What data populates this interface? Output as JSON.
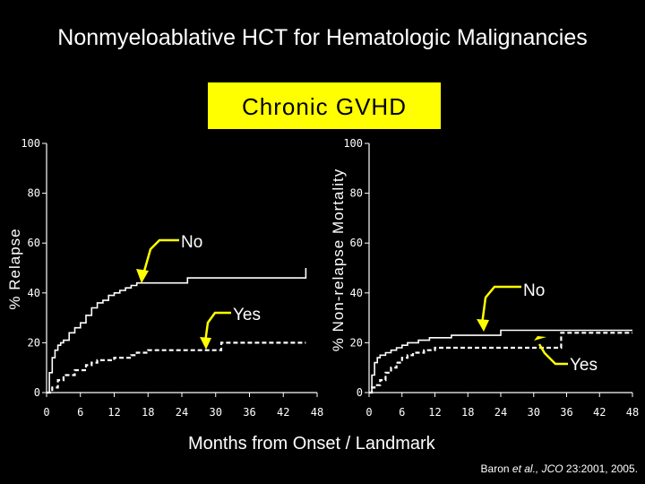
{
  "slide": {
    "title": "Nonmyeloablative HCT for Hematologic Malignancies",
    "badge": "Chronic GVHD",
    "xlabel": "Months from Onset / Landmark",
    "citation_pre": "Baron ",
    "citation_em": "et al., JCO",
    "citation_post": " 23:2001, 2005."
  },
  "colors": {
    "badge_bg": "#ffff00",
    "line": "#ffffff",
    "background": "#000000"
  },
  "chart_data": [
    {
      "type": "line",
      "name": "relapse",
      "title": "",
      "xlabel": "Months from Onset / Landmark",
      "ylabel": "% Relapse",
      "xlim": [
        0,
        48
      ],
      "ylim": [
        0,
        100
      ],
      "xticks": [
        0,
        6,
        12,
        18,
        24,
        30,
        36,
        42,
        48
      ],
      "yticks": [
        0,
        20,
        40,
        60,
        80,
        100
      ],
      "series": [
        {
          "name": "No",
          "style": "solid",
          "x": [
            0,
            0.5,
            1,
            1.5,
            2,
            2.5,
            3,
            4,
            5,
            6,
            7,
            8,
            9,
            10,
            11,
            12,
            13,
            14,
            15,
            16,
            18,
            20,
            24,
            25,
            29,
            46
          ],
          "y": [
            0,
            8,
            14,
            17,
            19,
            20,
            21,
            24,
            26,
            28,
            31,
            34,
            36,
            37,
            39,
            40,
            41,
            42,
            43,
            44,
            44,
            44,
            44,
            46,
            46,
            50
          ]
        },
        {
          "name": "Yes",
          "style": "dashed",
          "x": [
            0,
            1,
            2,
            3,
            5,
            7,
            8,
            9,
            12,
            15,
            16,
            18,
            30,
            31,
            46
          ],
          "y": [
            0,
            2,
            5,
            7,
            9,
            11,
            12,
            13,
            14,
            15,
            16,
            17,
            17,
            20,
            20
          ]
        }
      ],
      "annotations": [
        {
          "label": "No",
          "target_series": "No"
        },
        {
          "label": "Yes",
          "target_series": "Yes"
        }
      ]
    },
    {
      "type": "line",
      "name": "non-relapse-mortality",
      "title": "",
      "xlabel": "Months from Onset / Landmark",
      "ylabel": "% Non-relapse Mortality",
      "xlim": [
        0,
        48
      ],
      "ylim": [
        0,
        100
      ],
      "xticks": [
        0,
        6,
        12,
        18,
        24,
        30,
        36,
        42,
        48
      ],
      "yticks": [
        0,
        20,
        40,
        60,
        80,
        100
      ],
      "series": [
        {
          "name": "No",
          "style": "solid",
          "x": [
            0,
            0.5,
            1,
            1.5,
            2,
            3,
            4,
            5,
            6,
            7,
            8,
            9,
            10,
            11,
            12,
            14,
            15,
            18,
            20,
            24,
            48
          ],
          "y": [
            0,
            7,
            12,
            14,
            15,
            16,
            17,
            18,
            19,
            20,
            20,
            21,
            21,
            22,
            22,
            22,
            23,
            23,
            23,
            25,
            25
          ]
        },
        {
          "name": "Yes",
          "style": "dashed",
          "x": [
            0,
            0.5,
            1,
            2,
            3,
            4,
            5,
            6,
            7,
            8,
            10,
            12,
            24,
            30,
            34,
            35,
            48
          ],
          "y": [
            0,
            2,
            3,
            5,
            8,
            10,
            12,
            14,
            15,
            16,
            17,
            18,
            18,
            18,
            18,
            24,
            24
          ]
        }
      ],
      "annotations": [
        {
          "label": "No",
          "target_series": "No"
        },
        {
          "label": "Yes",
          "target_series": "Yes"
        }
      ]
    }
  ]
}
